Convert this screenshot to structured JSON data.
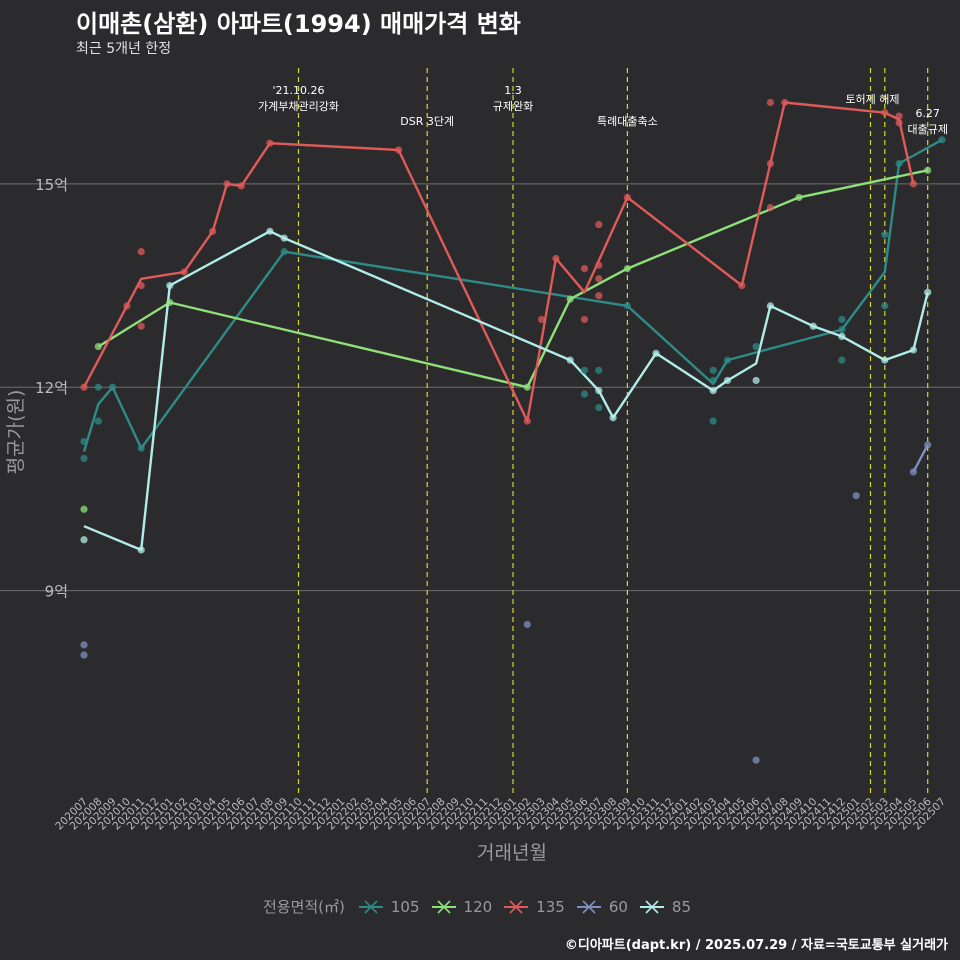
{
  "title": "이매촌(삼환) 아파트(1994) 매매가격 변화",
  "subtitle": "최근 5개년 한정",
  "caption": "©디아파트(dapt.kr) / 2025.07.29 / 자료=국토교통부 실거래가",
  "legend_title": "전용면적(㎡)",
  "chart_data": {
    "type": "line",
    "xlabel": "거래년월",
    "ylabel": "평균가(원)",
    "grid": true,
    "legend_position": "bottom",
    "categories": [
      "202007",
      "202008",
      "202009",
      "202010",
      "202011",
      "202012",
      "202101",
      "202102",
      "202103",
      "202104",
      "202105",
      "202106",
      "202107",
      "202108",
      "202109",
      "202110",
      "202111",
      "202112",
      "202201",
      "202202",
      "202203",
      "202204",
      "202205",
      "202206",
      "202207",
      "202208",
      "202209",
      "202210",
      "202211",
      "202212",
      "202301",
      "202302",
      "202303",
      "202304",
      "202305",
      "202306",
      "202307",
      "202308",
      "202309",
      "202310",
      "202311",
      "202312",
      "202401",
      "202402",
      "202403",
      "202404",
      "202405",
      "202406",
      "202407",
      "202408",
      "202409",
      "202410",
      "202411",
      "202412",
      "202501",
      "202502",
      "202503",
      "202504",
      "202505",
      "202506",
      "202507"
    ],
    "y_ticks": [
      {
        "value": 9,
        "label": "9억"
      },
      {
        "value": 12,
        "label": "12억"
      },
      {
        "value": 15,
        "label": "15억"
      }
    ],
    "ylim": [
      6.0,
      16.65
    ],
    "series": [
      {
        "name": "105",
        "color": "#2e8b88",
        "line": [
          [
            "202007",
            11.05
          ],
          [
            "202008",
            11.75
          ],
          [
            "202009",
            12.0
          ],
          [
            "202011",
            11.1
          ],
          [
            "202109",
            14.0
          ],
          [
            "202309",
            13.2
          ],
          [
            "202403",
            12.05
          ],
          [
            "202404",
            12.4
          ],
          [
            "202412",
            12.85
          ],
          [
            "202503",
            13.7
          ],
          [
            "202504",
            15.3
          ],
          [
            "202507",
            15.65
          ]
        ],
        "points": [
          [
            "202007",
            11.2
          ],
          [
            "202007",
            10.95
          ],
          [
            "202008",
            11.5
          ],
          [
            "202008",
            12.0
          ],
          [
            "202009",
            12.0
          ],
          [
            "202011",
            11.1
          ],
          [
            "202109",
            14.0
          ],
          [
            "202306",
            12.25
          ],
          [
            "202306",
            11.9
          ],
          [
            "202307",
            12.25
          ],
          [
            "202307",
            11.7
          ],
          [
            "202309",
            13.2
          ],
          [
            "202403",
            12.25
          ],
          [
            "202403",
            12.1
          ],
          [
            "202403",
            11.5
          ],
          [
            "202404",
            12.4
          ],
          [
            "202406",
            12.6
          ],
          [
            "202412",
            12.85
          ],
          [
            "202412",
            13.0
          ],
          [
            "202412",
            12.4
          ],
          [
            "202503",
            14.25
          ],
          [
            "202503",
            13.2
          ],
          [
            "202504",
            15.3
          ],
          [
            "202507",
            15.65
          ]
        ]
      },
      {
        "name": "120",
        "color": "#90e07a",
        "line": [
          [
            "202008",
            12.6
          ],
          [
            "202101",
            13.25
          ],
          [
            "202302",
            12.0
          ],
          [
            "202305",
            13.3
          ],
          [
            "202309",
            13.75
          ],
          [
            "202409",
            14.8
          ],
          [
            "202506",
            15.2
          ]
        ],
        "points": [
          [
            "202007",
            10.2
          ],
          [
            "202008",
            12.6
          ],
          [
            "202101",
            13.25
          ],
          [
            "202302",
            12.0
          ],
          [
            "202305",
            13.3
          ],
          [
            "202309",
            13.75
          ],
          [
            "202409",
            14.8
          ],
          [
            "202506",
            15.2
          ]
        ]
      },
      {
        "name": "135",
        "color": "#e05a5a",
        "line": [
          [
            "202007",
            12.0
          ],
          [
            "202011",
            13.6
          ],
          [
            "202102",
            13.7
          ],
          [
            "202104",
            14.3
          ],
          [
            "202105",
            15.0
          ],
          [
            "202106",
            14.97
          ],
          [
            "202108",
            15.6
          ],
          [
            "202205",
            15.5
          ],
          [
            "202302",
            11.5
          ],
          [
            "202304",
            13.9
          ],
          [
            "202306",
            13.4
          ],
          [
            "202309",
            14.8
          ],
          [
            "202405",
            13.5
          ],
          [
            "202407",
            15.3
          ],
          [
            "202408",
            16.2
          ],
          [
            "202503",
            16.05
          ],
          [
            "202504",
            15.95
          ],
          [
            "202505",
            15.0
          ]
        ],
        "points": [
          [
            "202007",
            12.0
          ],
          [
            "202010",
            13.2
          ],
          [
            "202011",
            14.0
          ],
          [
            "202011",
            13.5
          ],
          [
            "202011",
            12.9
          ],
          [
            "202102",
            13.7
          ],
          [
            "202104",
            14.3
          ],
          [
            "202105",
            15.0
          ],
          [
            "202106",
            14.97
          ],
          [
            "202108",
            15.6
          ],
          [
            "202205",
            15.5
          ],
          [
            "202302",
            11.5
          ],
          [
            "202303",
            13.0
          ],
          [
            "202304",
            13.9
          ],
          [
            "202306",
            13.75
          ],
          [
            "202306",
            13.0
          ],
          [
            "202307",
            14.4
          ],
          [
            "202307",
            13.8
          ],
          [
            "202307",
            13.6
          ],
          [
            "202307",
            13.35
          ],
          [
            "202309",
            14.8
          ],
          [
            "202405",
            13.5
          ],
          [
            "202407",
            16.2
          ],
          [
            "202407",
            15.3
          ],
          [
            "202407",
            14.65
          ],
          [
            "202408",
            16.2
          ],
          [
            "202503",
            16.05
          ],
          [
            "202504",
            16.0
          ],
          [
            "202504",
            15.9
          ],
          [
            "202505",
            15.0
          ]
        ]
      },
      {
        "name": "60",
        "color": "#7f8fbf",
        "line": [
          [
            "202505",
            10.75
          ],
          [
            "202506",
            11.15
          ]
        ],
        "points": [
          [
            "202007",
            8.2
          ],
          [
            "202007",
            8.05
          ],
          [
            "202302",
            8.5
          ],
          [
            "202406",
            6.5
          ],
          [
            "202501",
            10.4
          ],
          [
            "202505",
            10.75
          ],
          [
            "202506",
            11.15
          ]
        ]
      },
      {
        "name": "85",
        "color": "#b0ece8",
        "line": [
          [
            "202007",
            9.95
          ],
          [
            "202011",
            9.6
          ],
          [
            "202101",
            13.5
          ],
          [
            "202108",
            14.3
          ],
          [
            "202109",
            14.2
          ],
          [
            "202305",
            12.4
          ],
          [
            "202307",
            11.95
          ],
          [
            "202308",
            11.55
          ],
          [
            "202311",
            12.5
          ],
          [
            "202403",
            11.95
          ],
          [
            "202404",
            12.1
          ],
          [
            "202406",
            12.35
          ],
          [
            "202407",
            13.2
          ],
          [
            "202410",
            12.9
          ],
          [
            "202412",
            12.75
          ],
          [
            "202503",
            12.4
          ],
          [
            "202505",
            12.55
          ],
          [
            "202506",
            13.4
          ]
        ],
        "points": [
          [
            "202007",
            9.75
          ],
          [
            "202011",
            9.6
          ],
          [
            "202101",
            13.5
          ],
          [
            "202108",
            14.3
          ],
          [
            "202109",
            14.2
          ],
          [
            "202305",
            12.4
          ],
          [
            "202307",
            11.95
          ],
          [
            "202308",
            11.55
          ],
          [
            "202311",
            12.5
          ],
          [
            "202403",
            11.95
          ],
          [
            "202404",
            12.1
          ],
          [
            "202406",
            12.1
          ],
          [
            "202407",
            13.2
          ],
          [
            "202410",
            12.9
          ],
          [
            "202412",
            12.75
          ],
          [
            "202503",
            12.4
          ],
          [
            "202505",
            12.55
          ],
          [
            "202506",
            13.4
          ]
        ]
      }
    ],
    "events": [
      {
        "at": "202110",
        "lines": [
          "'21.10.26",
          "가계부채관리강화"
        ]
      },
      {
        "at": "202207",
        "lines": [
          "DSR 3단계"
        ]
      },
      {
        "at": "202301",
        "lines": [
          "1.3",
          "규제완화"
        ]
      },
      {
        "at": "202309",
        "lines": [
          "특례대출축소"
        ]
      },
      {
        "at": "202502",
        "lines": [
          "토허제 해제"
        ]
      },
      {
        "at": "202503",
        "lines": []
      },
      {
        "at": "202506",
        "lines": [
          "6.27",
          "대출규제"
        ]
      }
    ],
    "colors": {
      "background": "#2b2b2d",
      "grid": "#6e6e6e",
      "event_line": "#d7d72a",
      "axis_text": "#bdbdbd",
      "label_text": "#9a9a9a"
    }
  }
}
